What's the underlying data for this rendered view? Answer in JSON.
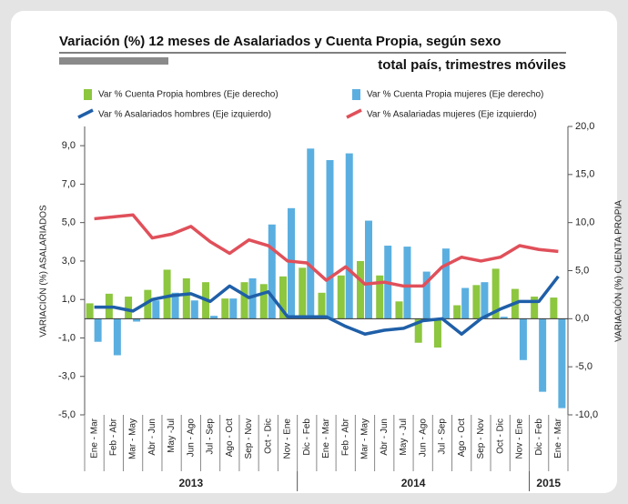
{
  "chart_data": {
    "type": "bar-line",
    "title": "Variación (%) 12 meses de Asalariados y Cuenta Propia, según sexo",
    "subtitle": "total país, trimestres móviles",
    "y_label": "VARIACIÓN (%) ASALARIADOS",
    "y2_label": "VARIACIÓN (%) CUENTA PROPIA",
    "categories": [
      "Ene - Mar",
      "Feb - Abr",
      "Mar - May",
      "Abr - Jun",
      "May -Jul",
      "Jun - Ago",
      "Jul - Sep",
      "Ago - Oct",
      "Sep - Nov",
      "Oct - Dic",
      "Nov - Ene",
      "Dic - Feb",
      "Ene - Mar",
      "Feb - Abr",
      "Mar - May",
      "Abr - Jun",
      "May - Jul",
      "Jun - Ago",
      "Jul - Sep",
      "Ago - Oct",
      "Sep - Nov",
      "Oct - Dic",
      "Nov - Ene",
      "Dic - Feb",
      "Ene - Mar"
    ],
    "years": [
      "2013",
      "2014",
      "2015"
    ],
    "ylim": [
      -5,
      10
    ],
    "yticks": [
      {
        "value": -5,
        "label": "-5,0"
      },
      {
        "value": -3,
        "label": "-3,0"
      },
      {
        "value": -1,
        "label": "-1,0"
      },
      {
        "value": 1,
        "label": "1,0"
      },
      {
        "value": 3,
        "label": "3,0"
      },
      {
        "value": 5,
        "label": "5,0"
      },
      {
        "value": 7,
        "label": "7,0"
      },
      {
        "value": 9,
        "label": "9,0"
      }
    ],
    "y2lim": [
      -10,
      20
    ],
    "y2ticks": [
      {
        "value": -10,
        "label": "-10,0"
      },
      {
        "value": -5,
        "label": "-5,0"
      },
      {
        "value": 0,
        "label": "0,0"
      },
      {
        "value": 5,
        "label": "5,0"
      },
      {
        "value": 10,
        "label": "10,0"
      },
      {
        "value": 15,
        "label": "15,0"
      },
      {
        "value": 20,
        "label": "20,0"
      }
    ],
    "series": [
      {
        "name": "Var % Cuenta Propia hombres (Eje derecho)",
        "kind": "bar",
        "axis": "y2",
        "color": "#8dc63f",
        "values": [
          1.6,
          2.6,
          2.3,
          3.0,
          5.1,
          4.2,
          3.8,
          2.1,
          3.8,
          3.6,
          4.4,
          5.3,
          2.7,
          4.5,
          6.0,
          4.5,
          1.8,
          -2.5,
          -3.0,
          1.4,
          3.5,
          5.2,
          3.1,
          2.3,
          2.2
        ]
      },
      {
        "name": "Var % Cuenta Propia mujeres (Eje derecho)",
        "kind": "bar",
        "axis": "y2",
        "color": "#5aafe0",
        "values": [
          -2.4,
          -3.8,
          -0.3,
          1.9,
          2.7,
          1.9,
          0.3,
          2.1,
          4.2,
          9.8,
          11.5,
          17.7,
          16.5,
          17.2,
          10.2,
          7.6,
          7.5,
          4.9,
          7.3,
          3.2,
          3.8,
          0.2,
          -4.3,
          -7.6,
          -9.3
        ]
      },
      {
        "name": "Var % Asalariados hombres (Eje izquierdo)",
        "kind": "line",
        "axis": "y",
        "color": "#1f5fa8",
        "values": [
          0.6,
          0.6,
          0.4,
          1.0,
          1.2,
          1.3,
          0.9,
          1.7,
          1.1,
          1.4,
          0.1,
          0.1,
          0.1,
          -0.4,
          -0.8,
          -0.6,
          -0.5,
          -0.1,
          0.0,
          -0.8,
          0.0,
          0.5,
          0.9,
          0.9,
          2.2
        ]
      },
      {
        "name": "Var % Asalariadas mujeres (Eje izquierdo)",
        "kind": "line",
        "axis": "y",
        "color": "#e0505a",
        "values": [
          5.2,
          5.3,
          5.4,
          4.2,
          4.4,
          4.8,
          4.0,
          3.4,
          4.1,
          3.8,
          3.0,
          2.9,
          2.0,
          2.7,
          1.8,
          1.9,
          1.7,
          1.7,
          2.7,
          3.2,
          3.0,
          3.2,
          3.8,
          3.6,
          3.5
        ]
      }
    ]
  }
}
